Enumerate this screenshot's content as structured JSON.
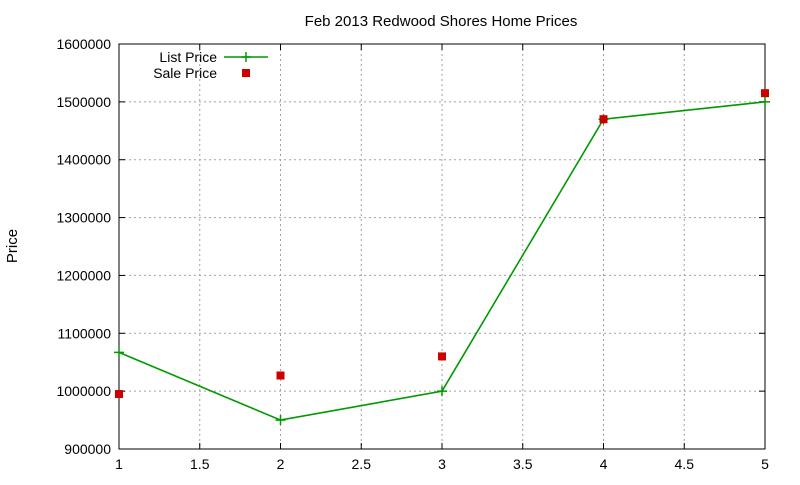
{
  "chart_data": {
    "type": "line",
    "title": "Feb 2013 Redwood Shores Home Prices",
    "xlabel": "",
    "ylabel": "Price",
    "xlim": [
      1,
      5
    ],
    "ylim": [
      900000,
      1600000
    ],
    "x_ticks": [
      "1",
      "1.5",
      "2",
      "2.5",
      "3",
      "3.5",
      "4",
      "4.5",
      "5"
    ],
    "y_ticks": [
      "900000",
      "1000000",
      "1100000",
      "1200000",
      "1300000",
      "1400000",
      "1500000",
      "1600000"
    ],
    "grid": true,
    "legend_position": "top-left",
    "series": [
      {
        "name": "List Price",
        "style": "linespoints",
        "marker": "plus",
        "color": "#009900",
        "x": [
          1,
          2,
          3,
          4,
          5
        ],
        "y": [
          1067000,
          950000,
          1000000,
          1470000,
          1500000
        ]
      },
      {
        "name": "Sale Price",
        "style": "points",
        "marker": "square",
        "color": "#cc0000",
        "x": [
          1,
          2,
          3,
          4,
          5
        ],
        "y": [
          995000,
          1027000,
          1060000,
          1470000,
          1515000
        ]
      }
    ]
  }
}
